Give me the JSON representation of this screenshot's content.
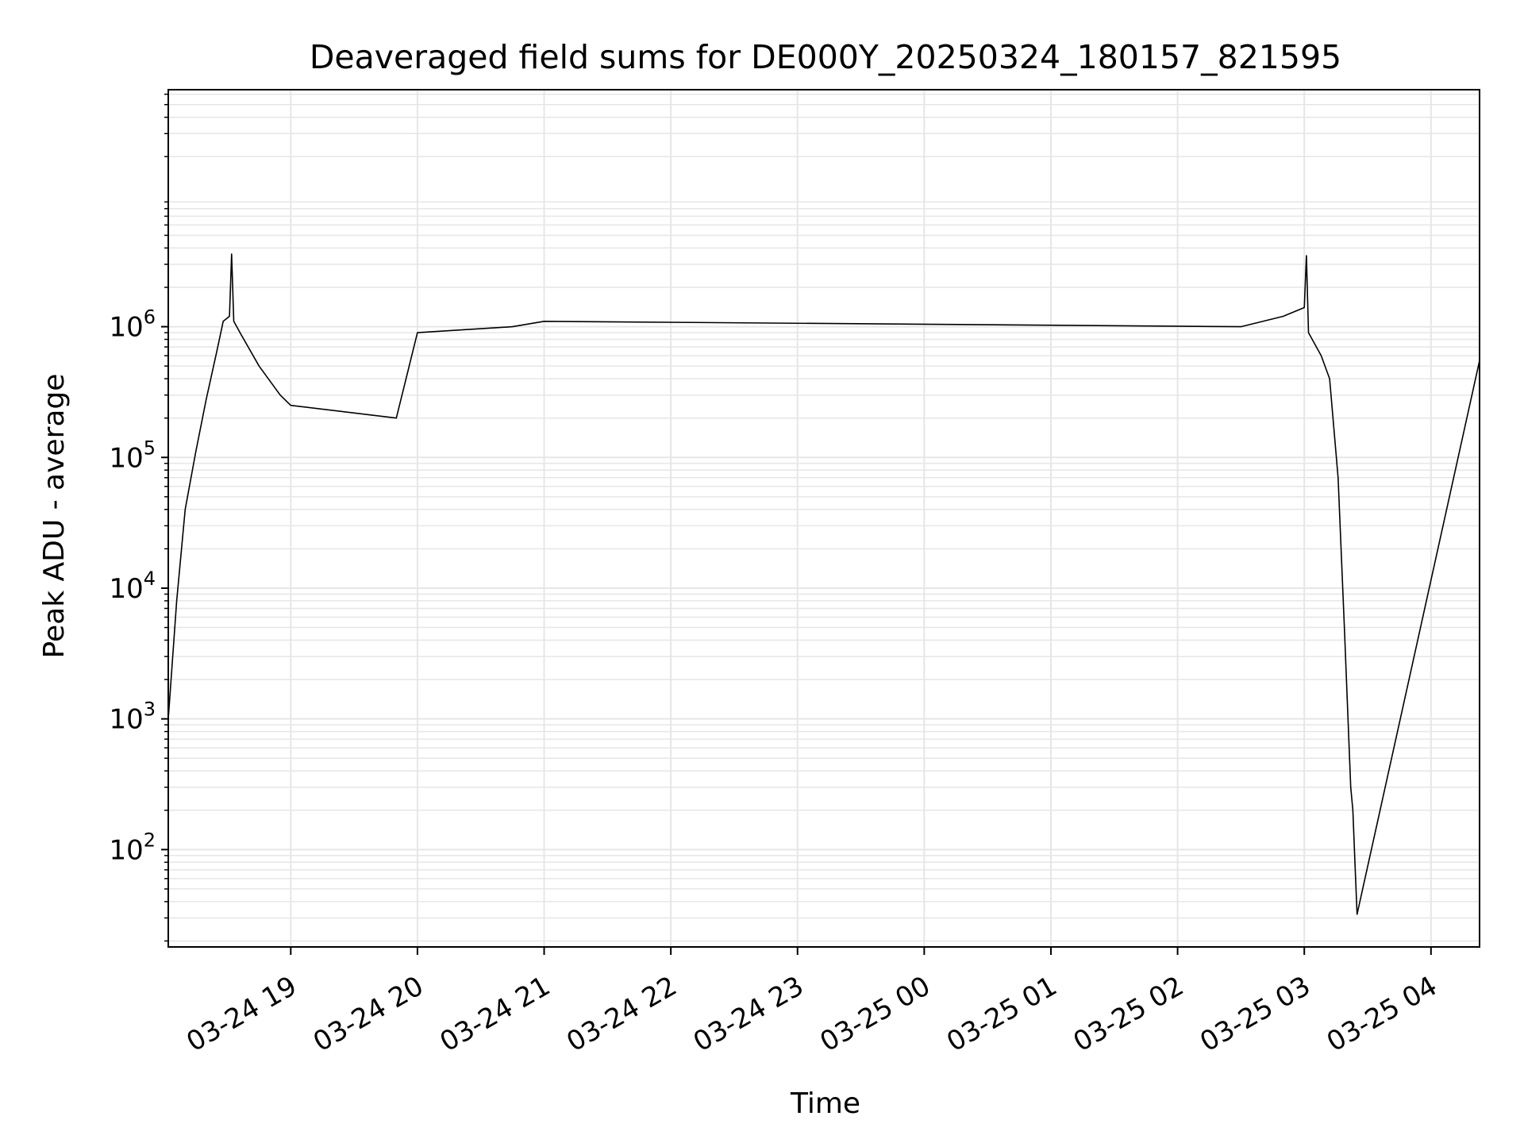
{
  "chart_data": {
    "type": "line",
    "title": "Deaveraged field sums for DE000Y_20250324_180157_821595",
    "xlabel": "Time",
    "ylabel": "Peak ADU - average",
    "x_tick_labels": [
      "03-24 19",
      "03-24 20",
      "03-24 21",
      "03-24 22",
      "03-24 23",
      "03-25 00",
      "03-25 01",
      "03-25 02",
      "03-25 03",
      "03-25 04"
    ],
    "x_ticks": [
      "2025-03-24 19:00",
      "2025-03-24 20:00",
      "2025-03-24 21:00",
      "2025-03-24 22:00",
      "2025-03-24 23:00",
      "2025-03-25 00:00",
      "2025-03-25 01:00",
      "2025-03-25 02:00",
      "2025-03-25 03:00",
      "2025-03-25 04:00"
    ],
    "xlim": [
      "2025-03-24 18:02",
      "2025-03-25 04:23"
    ],
    "y_scale": "log",
    "ylim": [
      18,
      65000000
    ],
    "y_tick_exponents": [
      "2",
      "3",
      "4",
      "5",
      "6"
    ],
    "y_tick_base": "10",
    "grid": true,
    "line_color": "#000000",
    "grid_color": "#e6e6e6",
    "series": [
      {
        "points": [
          [
            "2025-03-24 18:02",
            1000
          ],
          [
            "2025-03-24 18:06",
            8000
          ],
          [
            "2025-03-24 18:10",
            40000
          ],
          [
            "2025-03-24 18:15",
            110000
          ],
          [
            "2025-03-24 18:20",
            280000
          ],
          [
            "2025-03-24 18:25",
            650000
          ],
          [
            "2025-03-24 18:28",
            1100000
          ],
          [
            "2025-03-24 18:31",
            1200000
          ],
          [
            "2025-03-24 18:32",
            3600000
          ],
          [
            "2025-03-24 18:33",
            1100000
          ],
          [
            "2025-03-24 18:36",
            900000
          ],
          [
            "2025-03-24 18:45",
            500000
          ],
          [
            "2025-03-24 18:55",
            300000
          ],
          [
            "2025-03-24 19:00",
            250000
          ],
          [
            "2025-03-24 19:50",
            200000
          ],
          [
            "2025-03-24 20:00",
            900000
          ],
          [
            "2025-03-24 20:45",
            1000000
          ],
          [
            "2025-03-24 21:00",
            1100000
          ],
          [
            "2025-03-25 02:30",
            1000000
          ],
          [
            "2025-03-25 02:50",
            1200000
          ],
          [
            "2025-03-25 03:00",
            1400000
          ],
          [
            "2025-03-25 03:01",
            3500000
          ],
          [
            "2025-03-25 03:02",
            900000
          ],
          [
            "2025-03-25 03:08",
            600000
          ],
          [
            "2025-03-25 03:12",
            400000
          ],
          [
            "2025-03-25 03:16",
            70000
          ],
          [
            "2025-03-25 03:19",
            5000
          ],
          [
            "2025-03-25 03:22",
            300
          ],
          [
            "2025-03-25 03:23",
            200
          ],
          [
            "2025-03-25 03:24",
            80
          ],
          [
            "2025-03-25 03:25",
            32
          ],
          [
            "2025-03-25 04:23",
            550000
          ]
        ]
      }
    ]
  }
}
